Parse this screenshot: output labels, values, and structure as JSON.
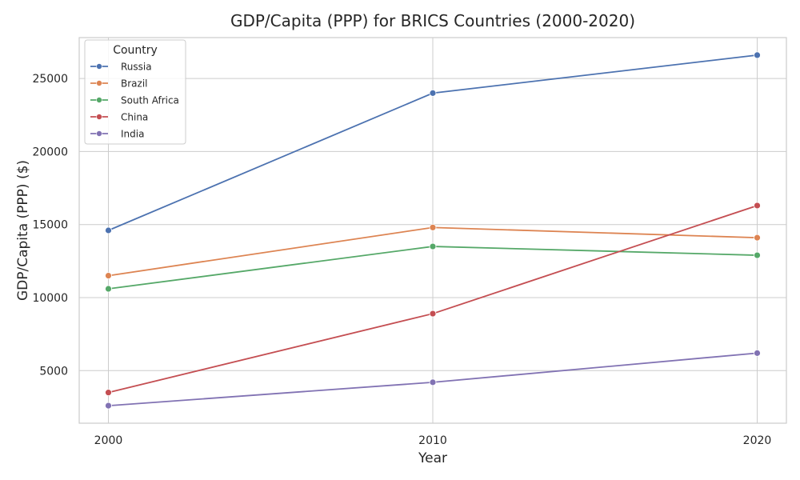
{
  "chart_data": {
    "type": "line",
    "title": "GDP/Capita (PPP) for BRICS Countries (2000-2020)",
    "xlabel": "Year",
    "ylabel": "GDP/Capita (PPP) ($)",
    "x": [
      2000,
      2010,
      2020
    ],
    "x_ticks": [
      "2000",
      "2010",
      "2020"
    ],
    "y_ticks": [
      5000,
      10000,
      15000,
      20000,
      25000
    ],
    "y_tick_labels": [
      "5000",
      "10000",
      "15000",
      "20000",
      "25000"
    ],
    "ylim": [
      1400,
      27800
    ],
    "xlim": [
      1999.1,
      2020.9
    ],
    "grid": true,
    "legend": {
      "title": "Country",
      "position": "top-left"
    },
    "series": [
      {
        "name": "Russia",
        "color": "#4c72b0",
        "values": [
          14600,
          24000,
          26600
        ]
      },
      {
        "name": "Brazil",
        "color": "#dd8452",
        "values": [
          11500,
          14800,
          14100
        ]
      },
      {
        "name": "South Africa",
        "color": "#55a868",
        "values": [
          10600,
          13500,
          12900
        ]
      },
      {
        "name": "China",
        "color": "#c44e52",
        "values": [
          3500,
          8900,
          16300
        ]
      },
      {
        "name": "India",
        "color": "#8172b3",
        "values": [
          2600,
          4200,
          6200
        ]
      }
    ]
  }
}
